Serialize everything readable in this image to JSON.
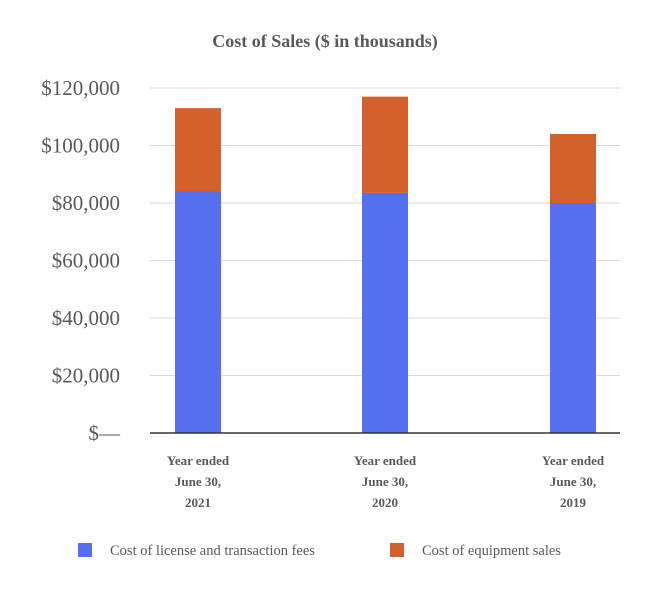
{
  "chart_data": {
    "type": "bar",
    "stacked": true,
    "title": "Cost of Sales ($ in thousands)",
    "categories": [
      [
        "Year ended",
        "June 30,",
        "2021"
      ],
      [
        "Year ended",
        "June 30,",
        "2020"
      ],
      [
        "Year ended",
        "June 30,",
        "2019"
      ]
    ],
    "series": [
      {
        "name": "Cost of license and transaction fees",
        "color": "#5470f0",
        "values": [
          84000,
          83500,
          80000
        ]
      },
      {
        "name": "Cost of equipment sales",
        "color": "#d4612b",
        "values": [
          29000,
          33500,
          24000
        ]
      }
    ],
    "ylim": [
      0,
      120000
    ],
    "yticks": [
      0,
      20000,
      40000,
      60000,
      80000,
      100000,
      120000
    ],
    "ytick_labels": [
      "$—",
      "$20,000",
      "$40,000",
      "$60,000",
      "$80,000",
      "$100,000",
      "$120,000"
    ],
    "grid": true,
    "legend_position": "bottom"
  }
}
